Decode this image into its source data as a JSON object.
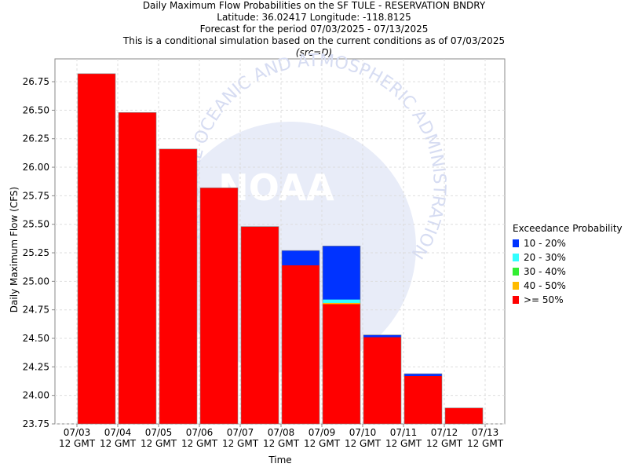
{
  "titles": {
    "line1": "Daily Maximum Flow Probabilities on the SF TULE - RESERVATION BNDRY",
    "line2": "Latitude: 36.02417 Longitude: -118.8125",
    "line3": "Forecast for the period 07/03/2025 - 07/13/2025",
    "line4": "This is a conditional simulation based on the current conditions as of 07/03/2025",
    "line5": "(src=D)"
  },
  "watermark": {
    "text": "NOAA",
    "arc_text": "NATIONAL OCEANIC AND ATMOSPHERIC ADMINISTRATION",
    "color": "#d6dcf2"
  },
  "legend": {
    "title": "Exceedance Probability",
    "items": [
      {
        "label": "10 - 20%",
        "color": "#0033ff"
      },
      {
        "label": "20 - 30%",
        "color": "#33ffff"
      },
      {
        "label": "30 - 40%",
        "color": "#33ee33"
      },
      {
        "label": "40 - 50%",
        "color": "#ffbb00"
      },
      {
        "label": ">= 50%",
        "color": "#ff0000"
      }
    ],
    "placement": "right"
  },
  "chart_data": {
    "type": "bar",
    "stacked": true,
    "title": "Daily Maximum Flow Probabilities on the SF TULE - RESERVATION BNDRY",
    "xlabel": "Time",
    "ylabel": "Daily Maximum Flow (CFS)",
    "ylim": [
      23.75,
      26.95
    ],
    "yticks": [
      "23.75",
      "24.00",
      "24.25",
      "24.50",
      "24.75",
      "25.00",
      "25.25",
      "25.50",
      "25.75",
      "26.00",
      "26.25",
      "26.50",
      "26.75"
    ],
    "xticks": [
      [
        "07/03",
        "12 GMT"
      ],
      [
        "07/04",
        "12 GMT"
      ],
      [
        "07/05",
        "12 GMT"
      ],
      [
        "07/06",
        "12 GMT"
      ],
      [
        "07/07",
        "12 GMT"
      ],
      [
        "07/08",
        "12 GMT"
      ],
      [
        "07/09",
        "12 GMT"
      ],
      [
        "07/10",
        "12 GMT"
      ],
      [
        "07/11",
        "12 GMT"
      ],
      [
        "07/12",
        "12 GMT"
      ],
      [
        "07/13",
        "12 GMT"
      ]
    ],
    "grid": true,
    "bars": [
      {
        "period": "07/03-07/04",
        "segments": {
          ">= 50%": 26.82
        }
      },
      {
        "period": "07/04-07/05",
        "segments": {
          ">= 50%": 26.48
        }
      },
      {
        "period": "07/05-07/06",
        "segments": {
          ">= 50%": 26.16
        }
      },
      {
        "period": "07/06-07/07",
        "segments": {
          ">= 50%": 25.82
        }
      },
      {
        "period": "07/07-07/08",
        "segments": {
          ">= 50%": 25.48
        }
      },
      {
        "period": "07/08-07/09",
        "segments": {
          ">= 50%": 25.14,
          "10 - 20%": 25.27
        }
      },
      {
        "period": "07/09-07/10",
        "segments": {
          ">= 50%": 24.8,
          "40 - 50%": 24.81,
          "30 - 40%": 24.81,
          "20 - 30%": 24.84,
          "10 - 20%": 25.31
        }
      },
      {
        "period": "07/10-07/11",
        "segments": {
          ">= 50%": 24.51,
          "10 - 20%": 24.53
        }
      },
      {
        "period": "07/11-07/12",
        "segments": {
          ">= 50%": 24.17,
          "10 - 20%": 24.19
        }
      },
      {
        "period": "07/12-07/13",
        "segments": {
          ">= 50%": 23.89
        }
      }
    ]
  }
}
